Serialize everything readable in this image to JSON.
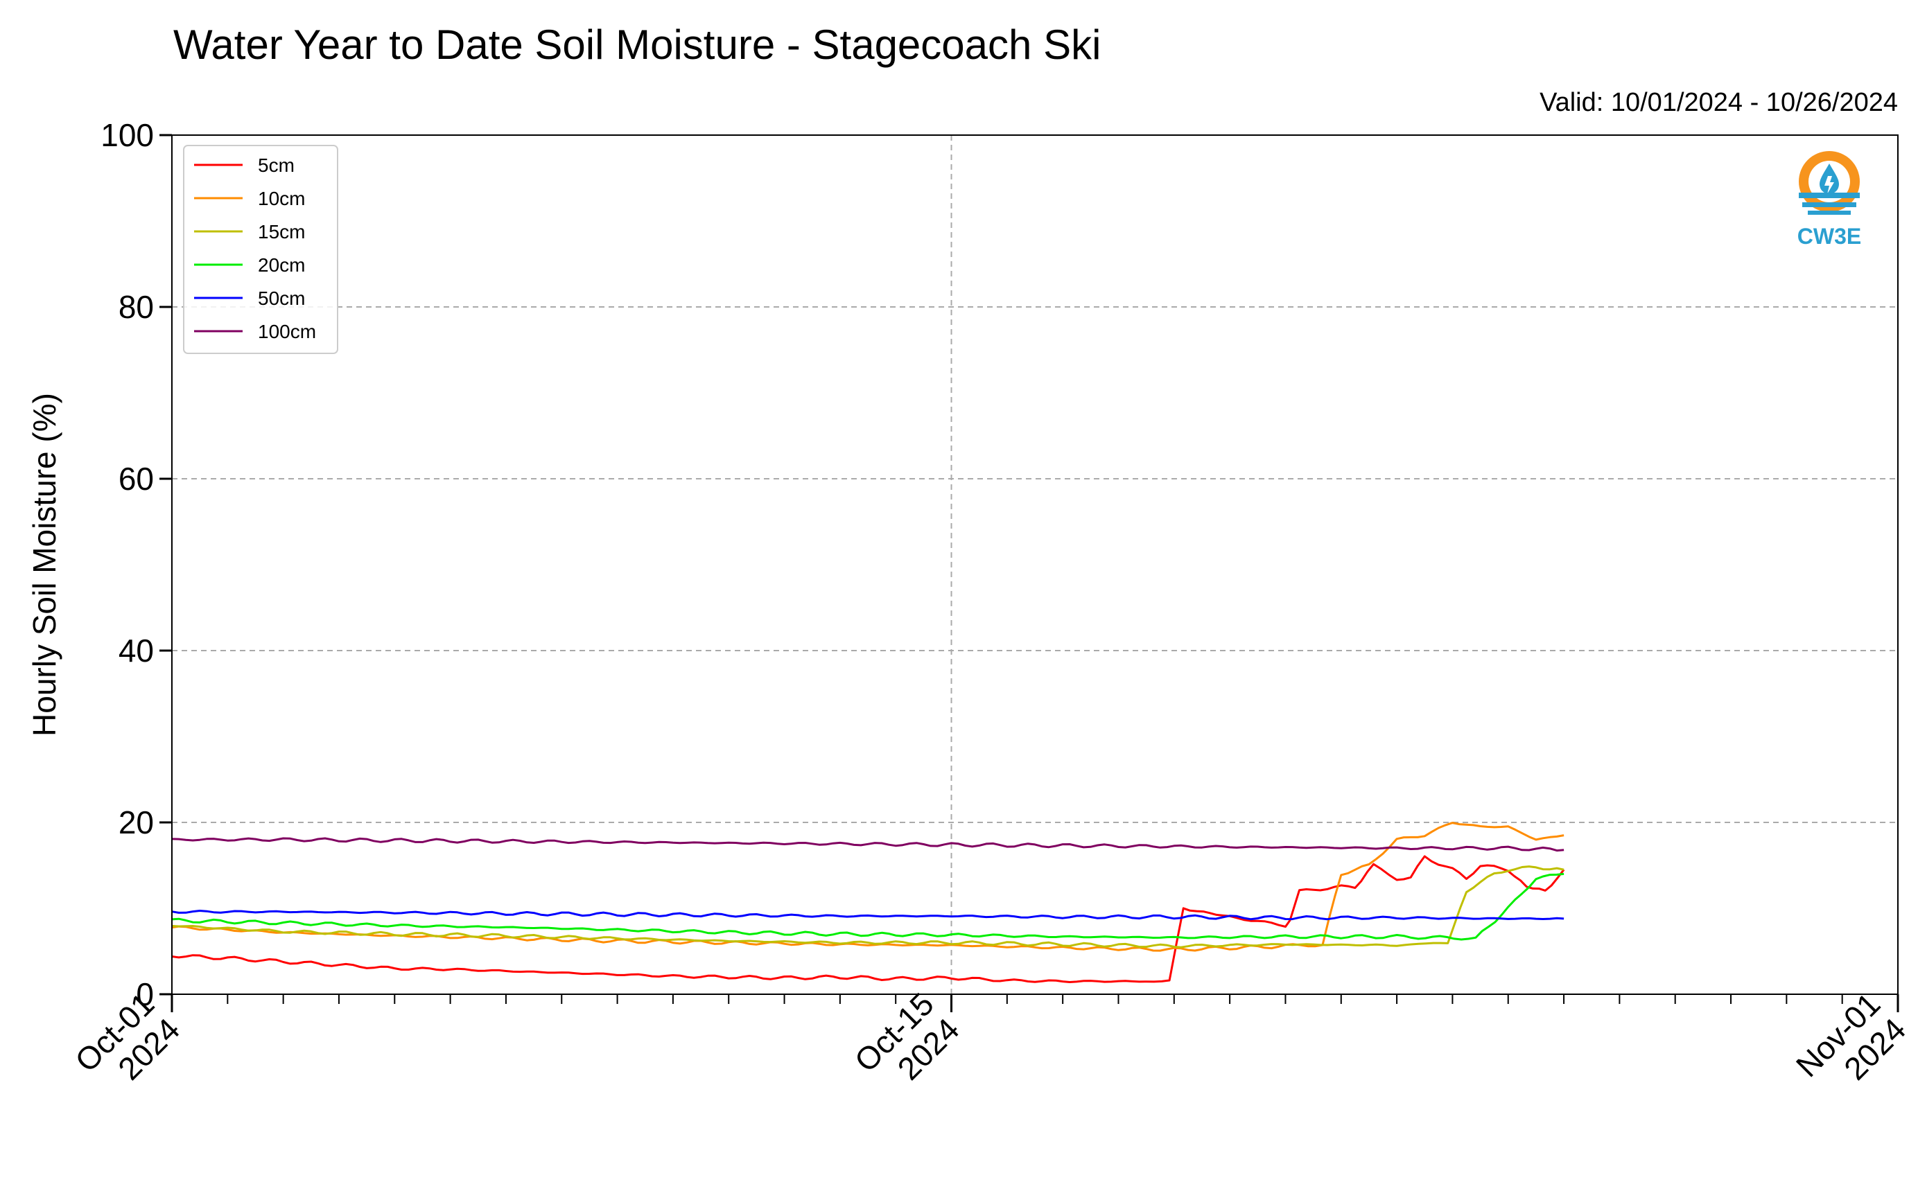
{
  "chart_data": {
    "type": "line",
    "title": "Water Year to Date Soil Moisture - Stagecoach Ski",
    "subtitle": "Valid: 10/01/2024 - 10/26/2024",
    "xlabel": "",
    "ylabel": "Hourly Soil Moisture (%)",
    "ylim": [
      0,
      100
    ],
    "y_ticks": [
      0,
      20,
      40,
      60,
      80,
      100
    ],
    "xlim": [
      "2024-10-01",
      "2024-11-01"
    ],
    "x_ticks": [
      {
        "date": "2024-10-01",
        "label": [
          "Oct-01",
          "2024"
        ]
      },
      {
        "date": "2024-10-15",
        "label": [
          "Oct-15",
          "2024"
        ]
      },
      {
        "date": "2024-11-01",
        "label": [
          "Nov-01",
          "2024"
        ]
      }
    ],
    "grid": true,
    "legend_position": "top-left",
    "logo_text": "CW3E",
    "series": [
      {
        "name": "5cm",
        "color": "#ff0000",
        "x": [
          "2024-10-01 00:00",
          "2024-10-02 00:00",
          "2024-10-03 00:00",
          "2024-10-04 00:00",
          "2024-10-05 00:00",
          "2024-10-06 00:00",
          "2024-10-07 00:00",
          "2024-10-08 00:00",
          "2024-10-09 00:00",
          "2024-10-10 00:00",
          "2024-10-11 00:00",
          "2024-10-12 00:00",
          "2024-10-13 00:00",
          "2024-10-14 00:00",
          "2024-10-15 00:00",
          "2024-10-16 00:00",
          "2024-10-17 00:00",
          "2024-10-18 00:00",
          "2024-10-18 12:00",
          "2024-10-18 22:00",
          "2024-10-19 04:00",
          "2024-10-20 00:00",
          "2024-10-21 00:00",
          "2024-10-21 02:00",
          "2024-10-21 06:00",
          "2024-10-22 00:00",
          "2024-10-22 06:00",
          "2024-10-22 14:00",
          "2024-10-23 00:00",
          "2024-10-23 06:00",
          "2024-10-23 12:00",
          "2024-10-24 00:00",
          "2024-10-24 06:00",
          "2024-10-24 12:00",
          "2024-10-25 00:00",
          "2024-10-25 08:00",
          "2024-10-25 16:00",
          "2024-10-26 00:00"
        ],
        "values": [
          4.5,
          4.2,
          3.8,
          3.4,
          3.0,
          2.9,
          2.7,
          2.5,
          2.3,
          2.1,
          2.0,
          1.9,
          2.0,
          1.8,
          1.9,
          1.6,
          1.5,
          1.5,
          1.5,
          1.5,
          10.0,
          9.0,
          8.0,
          8.5,
          12.0,
          12.5,
          12.5,
          15.0,
          13.5,
          13.5,
          16.0,
          14.5,
          13.5,
          15.0,
          14.5,
          12.5,
          12.0,
          14.5
        ]
      },
      {
        "name": "10cm",
        "color": "#ff8c00",
        "x": [
          "2024-10-01 00:00",
          "2024-10-03 00:00",
          "2024-10-05 00:00",
          "2024-10-07 00:00",
          "2024-10-09 00:00",
          "2024-10-11 00:00",
          "2024-10-13 00:00",
          "2024-10-15 00:00",
          "2024-10-17 00:00",
          "2024-10-19 00:00",
          "2024-10-20 00:00",
          "2024-10-21 00:00",
          "2024-10-21 16:00",
          "2024-10-22 00:00",
          "2024-10-22 12:00",
          "2024-10-23 00:00",
          "2024-10-23 12:00",
          "2024-10-24 00:00",
          "2024-10-24 12:00",
          "2024-10-25 00:00",
          "2024-10-25 12:00",
          "2024-10-26 00:00"
        ],
        "values": [
          7.8,
          7.2,
          6.8,
          6.5,
          6.2,
          6.0,
          5.8,
          5.7,
          5.4,
          5.2,
          5.4,
          5.6,
          5.8,
          14.0,
          15.0,
          18.0,
          18.5,
          20.0,
          19.5,
          19.5,
          18.0,
          18.5
        ]
      },
      {
        "name": "15cm",
        "color": "#bfbf00",
        "x": [
          "2024-10-01 00:00",
          "2024-10-03 00:00",
          "2024-10-05 00:00",
          "2024-10-07 00:00",
          "2024-10-09 00:00",
          "2024-10-11 00:00",
          "2024-10-13 00:00",
          "2024-10-15 00:00",
          "2024-10-17 00:00",
          "2024-10-19 00:00",
          "2024-10-21 00:00",
          "2024-10-23 00:00",
          "2024-10-23 22:00",
          "2024-10-24 06:00",
          "2024-10-24 18:00",
          "2024-10-25 00:00",
          "2024-10-25 12:00",
          "2024-10-26 00:00"
        ],
        "values": [
          8.0,
          7.3,
          7.0,
          6.8,
          6.5,
          6.2,
          6.0,
          6.0,
          5.8,
          5.6,
          5.8,
          5.7,
          6.0,
          12.0,
          14.0,
          14.5,
          14.8,
          14.5
        ]
      },
      {
        "name": "20cm",
        "color": "#00ee00",
        "x": [
          "2024-10-01 00:00",
          "2024-10-03 00:00",
          "2024-10-05 00:00",
          "2024-10-07 00:00",
          "2024-10-09 00:00",
          "2024-10-11 00:00",
          "2024-10-13 00:00",
          "2024-10-15 00:00",
          "2024-10-17 00:00",
          "2024-10-19 00:00",
          "2024-10-21 00:00",
          "2024-10-23 00:00",
          "2024-10-24 10:00",
          "2024-10-25 00:00",
          "2024-10-25 12:00",
          "2024-10-26 00:00"
        ],
        "values": [
          8.6,
          8.3,
          8.0,
          7.8,
          7.5,
          7.2,
          7.0,
          6.9,
          6.7,
          6.6,
          6.7,
          6.7,
          6.5,
          10.0,
          13.5,
          14.0
        ]
      },
      {
        "name": "50cm",
        "color": "#0000ff",
        "x": [
          "2024-10-01 00:00",
          "2024-10-03 00:00",
          "2024-10-05 00:00",
          "2024-10-07 00:00",
          "2024-10-09 00:00",
          "2024-10-11 00:00",
          "2024-10-13 00:00",
          "2024-10-15 00:00",
          "2024-10-17 00:00",
          "2024-10-19 00:00",
          "2024-10-21 00:00",
          "2024-10-23 00:00",
          "2024-10-25 00:00",
          "2024-10-26 00:00"
        ],
        "values": [
          9.6,
          9.6,
          9.5,
          9.4,
          9.3,
          9.2,
          9.1,
          9.1,
          9.0,
          9.0,
          8.9,
          8.9,
          8.8,
          8.8
        ]
      },
      {
        "name": "100cm",
        "color": "#800060",
        "x": [
          "2024-10-01 00:00",
          "2024-10-03 00:00",
          "2024-10-05 00:00",
          "2024-10-07 00:00",
          "2024-10-09 00:00",
          "2024-10-11 00:00",
          "2024-10-13 00:00",
          "2024-10-15 00:00",
          "2024-10-17 00:00",
          "2024-10-19 00:00",
          "2024-10-21 00:00",
          "2024-10-23 00:00",
          "2024-10-25 00:00",
          "2024-10-26 00:00"
        ],
        "values": [
          18.0,
          18.0,
          17.9,
          17.8,
          17.7,
          17.6,
          17.5,
          17.4,
          17.3,
          17.2,
          17.1,
          17.0,
          17.0,
          16.8
        ]
      }
    ]
  }
}
